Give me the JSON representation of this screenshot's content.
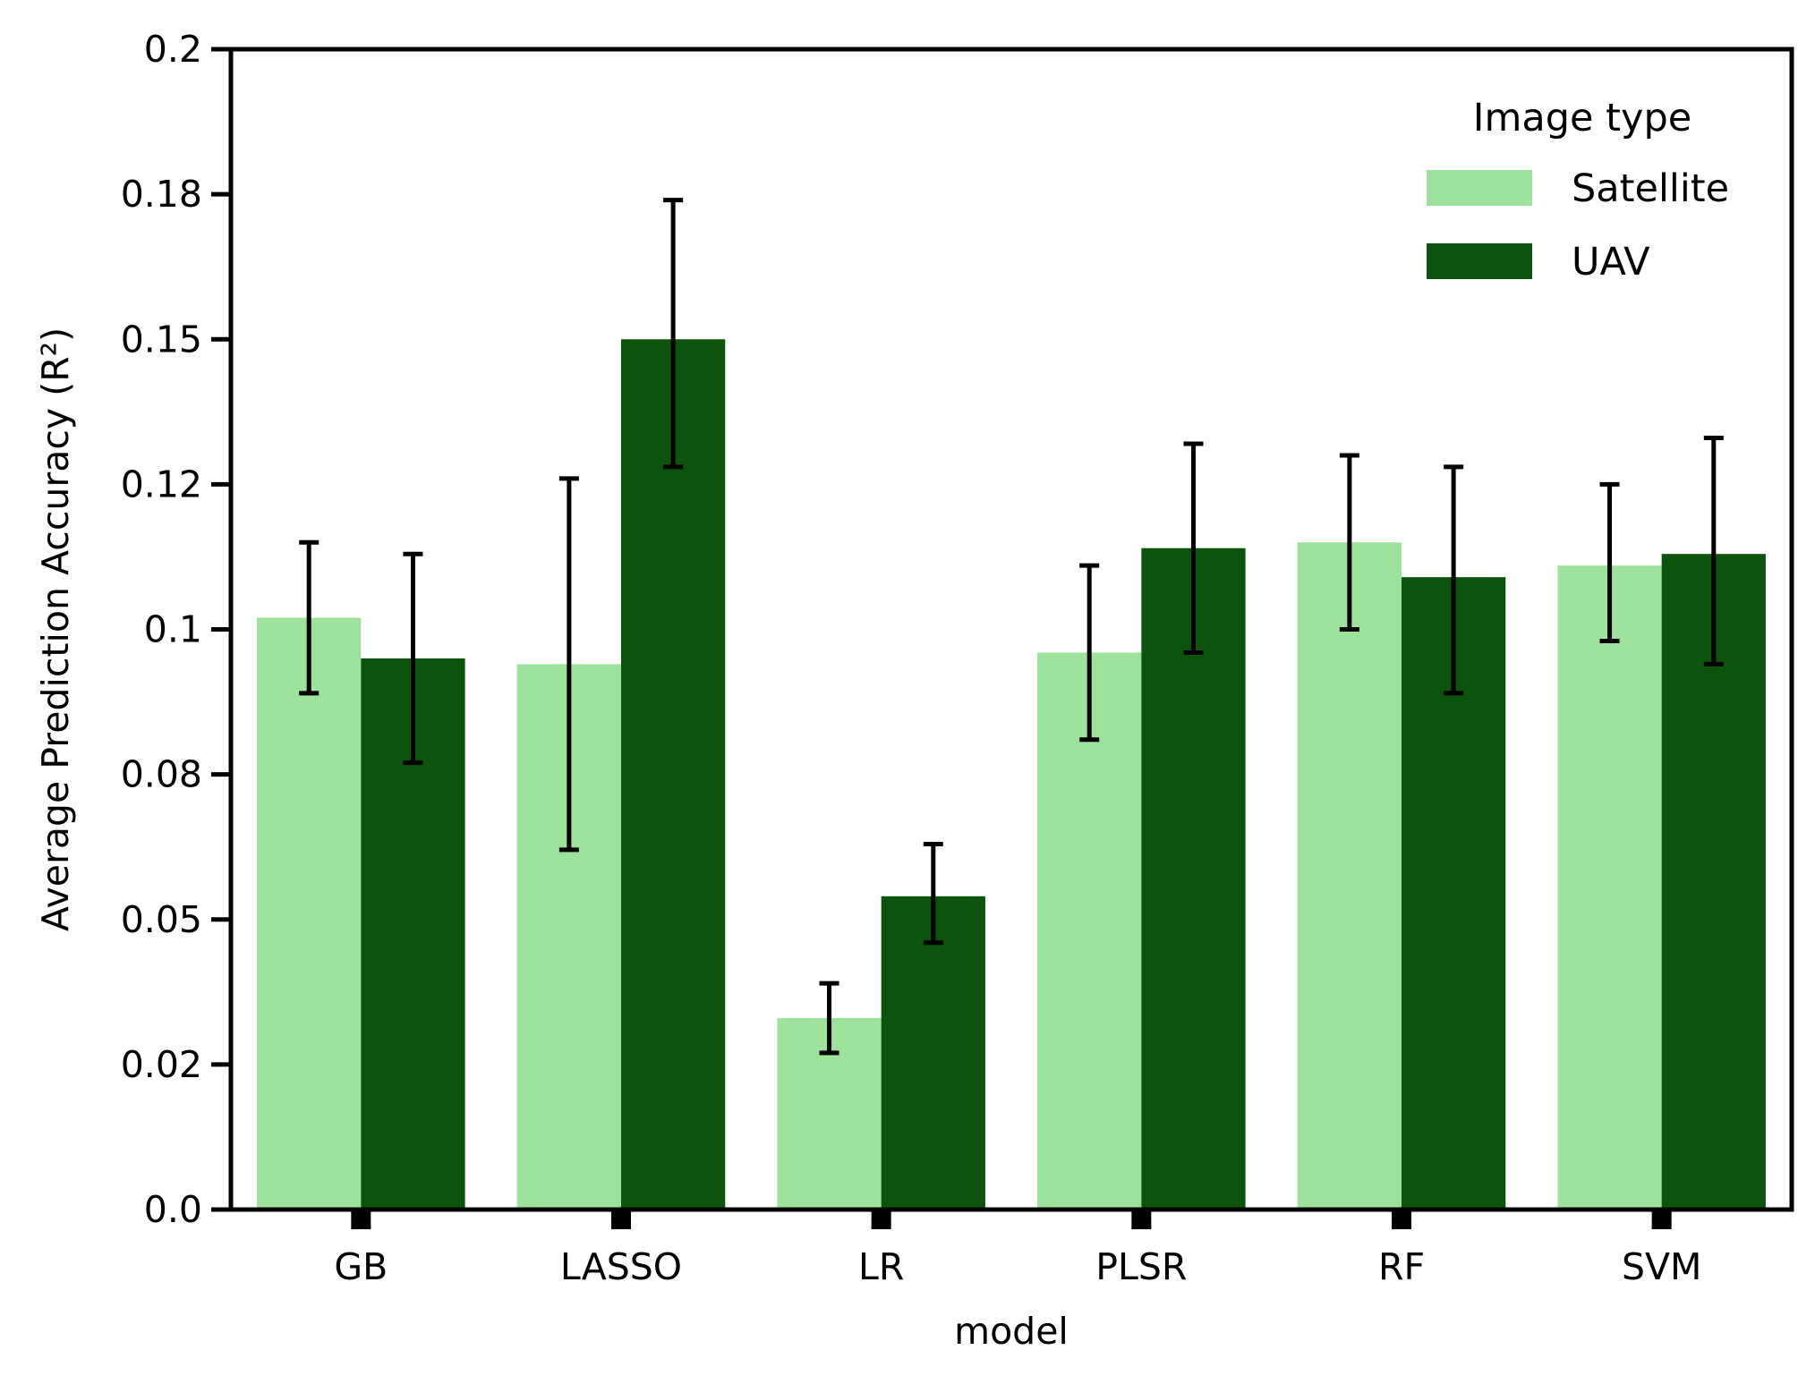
{
  "chart_data": {
    "type": "bar",
    "categories": [
      "GB",
      "LASSO",
      "LR",
      "PLSR",
      "RF",
      "SVM"
    ],
    "series": [
      {
        "name": "Satellite",
        "color": "#9de29b",
        "values": [
          0.102,
          0.094,
          0.033,
          0.096,
          0.115,
          0.111
        ],
        "err_low": [
          0.089,
          0.062,
          0.027,
          0.081,
          0.1,
          0.098
        ],
        "err_high": [
          0.115,
          0.126,
          0.039,
          0.111,
          0.13,
          0.125
        ]
      },
      {
        "name": "UAV",
        "color": "#0c540c",
        "values": [
          0.095,
          0.15,
          0.054,
          0.114,
          0.109,
          0.113
        ],
        "err_low": [
          0.077,
          0.128,
          0.046,
          0.096,
          0.089,
          0.094
        ],
        "err_high": [
          0.113,
          0.174,
          0.063,
          0.132,
          0.128,
          0.133
        ]
      }
    ],
    "ylim": [
      0,
      0.2
    ],
    "yticks": [
      0,
      0.025,
      0.05,
      0.075,
      0.1,
      0.125,
      0.15,
      0.175,
      0.2
    ],
    "ytick_labels": [
      "0.0",
      "0.02",
      "0.05",
      "0.08",
      "0.1",
      "0.12",
      "0.15",
      "0.18",
      "0.2"
    ],
    "xlabel": "model",
    "ylabel": "Average Prediction Accuracy (R²)",
    "legend": {
      "title": "Image type",
      "position": "top-right"
    },
    "grid": false
  }
}
